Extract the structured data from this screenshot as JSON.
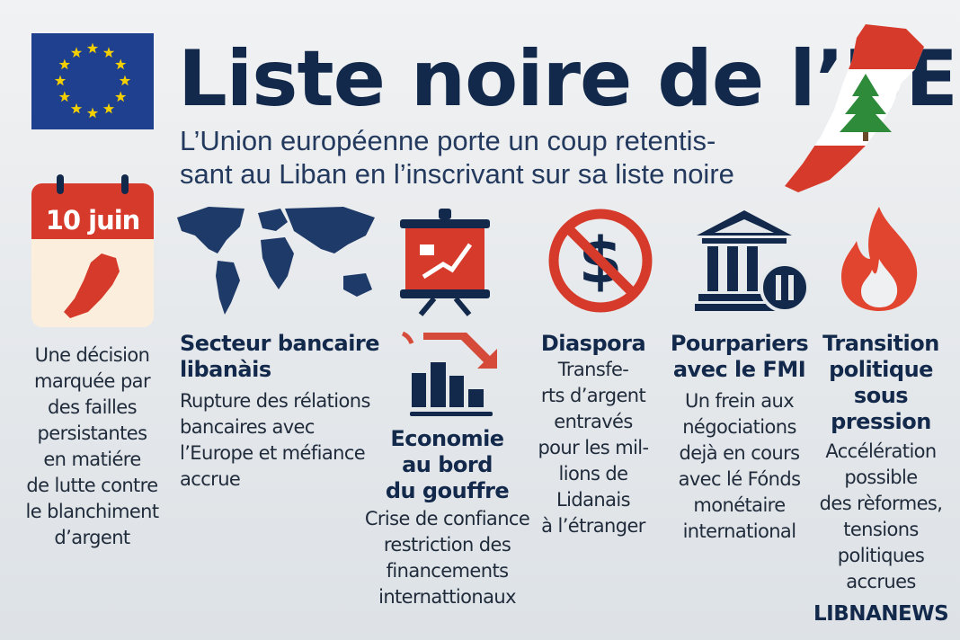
{
  "header": {
    "title": "Liste noire de l’UE",
    "subtitle_lines": [
      "L’Union européenne porte un coup retentis-",
      "sant au Liban en l’inscrivant sur sa liste noire"
    ]
  },
  "calendar": {
    "date": "10 juin"
  },
  "columns": [
    {
      "heading": [],
      "body": [
        "Une décision",
        "marquée par",
        "des failles",
        "persistantes",
        "en matiére",
        "de lutte contre",
        "le blanchiment",
        "d’argent"
      ],
      "icon": "calendar-icon"
    },
    {
      "heading": [
        "Secteur bancaire",
        "libanàis"
      ],
      "body": [
        "Rupture des rélations",
        "bancaires avec",
        "l’Europe et méfiance",
        "accrue"
      ],
      "icon": "world-map-icon"
    },
    {
      "heading": [
        "Economie",
        "au bord",
        "du gouffre"
      ],
      "body": [
        "Crise de confiance",
        "restriction des",
        "financements",
        "internattionaux"
      ],
      "icon": "falling-chart-icon"
    },
    {
      "heading": [
        "Diaspora"
      ],
      "body": [
        "Transfe-",
        "rts d’argent",
        "entravés",
        "pour les mil-",
        "lions de",
        "Lidanais",
        "à l’étranger"
      ],
      "icon": "no-dollar-icon"
    },
    {
      "heading": [
        "Pourpariers",
        "avec le FMI"
      ],
      "body": [
        "Un frein aux",
        "négociations",
        "dejà en cours",
        "avec lé Fónds",
        "monétaire",
        "international"
      ],
      "icon": "bank-icon"
    },
    {
      "heading": [
        "Transition",
        "politique",
        "sous",
        "pression"
      ],
      "body": [
        "Accélération",
        "possible",
        "des rèformes,",
        "tensions",
        "politiques",
        "accrues"
      ],
      "icon": "flame-icon"
    }
  ],
  "brand": "LIBNANEWS",
  "colors": {
    "navy": "#13294b",
    "red": "#d63a2a",
    "eu_blue": "#1f3f8f",
    "eu_gold": "#f5d000",
    "cedar_green": "#2e8b3a"
  }
}
